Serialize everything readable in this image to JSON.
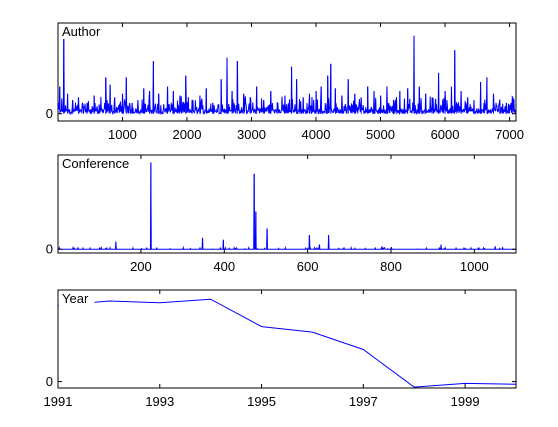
{
  "chart_data": [
    {
      "type": "line",
      "title": "Author",
      "color": "#0000ff",
      "xlim": [
        1,
        7100
      ],
      "ylim": [
        -0.08,
        1
      ],
      "xticks": [
        1000,
        2000,
        3000,
        4000,
        5000,
        6000,
        7000
      ],
      "yticks": [
        0
      ],
      "peaks": [
        {
          "x": 30,
          "y": 0.3
        },
        {
          "x": 90,
          "y": 0.92
        },
        {
          "x": 150,
          "y": 0.22
        },
        {
          "x": 230,
          "y": 0.15
        },
        {
          "x": 320,
          "y": 0.18
        },
        {
          "x": 450,
          "y": 0.12
        },
        {
          "x": 560,
          "y": 0.2
        },
        {
          "x": 640,
          "y": 0.1
        },
        {
          "x": 740,
          "y": 0.4
        },
        {
          "x": 810,
          "y": 0.32
        },
        {
          "x": 880,
          "y": 0.18
        },
        {
          "x": 1000,
          "y": 0.22
        },
        {
          "x": 1060,
          "y": 0.4
        },
        {
          "x": 1150,
          "y": 0.12
        },
        {
          "x": 1240,
          "y": 0.15
        },
        {
          "x": 1330,
          "y": 0.28
        },
        {
          "x": 1420,
          "y": 0.25
        },
        {
          "x": 1480,
          "y": 0.58
        },
        {
          "x": 1560,
          "y": 0.22
        },
        {
          "x": 1700,
          "y": 0.3
        },
        {
          "x": 1790,
          "y": 0.25
        },
        {
          "x": 1890,
          "y": 0.2
        },
        {
          "x": 1980,
          "y": 0.42
        },
        {
          "x": 2080,
          "y": 0.15
        },
        {
          "x": 2200,
          "y": 0.2
        },
        {
          "x": 2300,
          "y": 0.28
        },
        {
          "x": 2400,
          "y": 0.12
        },
        {
          "x": 2530,
          "y": 0.38
        },
        {
          "x": 2620,
          "y": 0.62
        },
        {
          "x": 2700,
          "y": 0.25
        },
        {
          "x": 2780,
          "y": 0.58
        },
        {
          "x": 2880,
          "y": 0.22
        },
        {
          "x": 2980,
          "y": 0.18
        },
        {
          "x": 3080,
          "y": 0.3
        },
        {
          "x": 3190,
          "y": 0.15
        },
        {
          "x": 3300,
          "y": 0.25
        },
        {
          "x": 3400,
          "y": 0.12
        },
        {
          "x": 3520,
          "y": 0.2
        },
        {
          "x": 3620,
          "y": 0.52
        },
        {
          "x": 3700,
          "y": 0.38
        },
        {
          "x": 3800,
          "y": 0.18
        },
        {
          "x": 3900,
          "y": 0.22
        },
        {
          "x": 4000,
          "y": 0.25
        },
        {
          "x": 4080,
          "y": 0.3
        },
        {
          "x": 4180,
          "y": 0.42
        },
        {
          "x": 4230,
          "y": 0.55
        },
        {
          "x": 4300,
          "y": 0.28
        },
        {
          "x": 4400,
          "y": 0.2
        },
        {
          "x": 4500,
          "y": 0.38
        },
        {
          "x": 4600,
          "y": 0.22
        },
        {
          "x": 4700,
          "y": 0.18
        },
        {
          "x": 4800,
          "y": 0.3
        },
        {
          "x": 4900,
          "y": 0.25
        },
        {
          "x": 5000,
          "y": 0.2
        },
        {
          "x": 5100,
          "y": 0.3
        },
        {
          "x": 5200,
          "y": 0.15
        },
        {
          "x": 5300,
          "y": 0.25
        },
        {
          "x": 5420,
          "y": 0.28
        },
        {
          "x": 5520,
          "y": 0.86
        },
        {
          "x": 5600,
          "y": 0.3
        },
        {
          "x": 5700,
          "y": 0.22
        },
        {
          "x": 5800,
          "y": 0.18
        },
        {
          "x": 5900,
          "y": 0.45
        },
        {
          "x": 6000,
          "y": 0.25
        },
        {
          "x": 6100,
          "y": 0.3
        },
        {
          "x": 6150,
          "y": 0.7
        },
        {
          "x": 6250,
          "y": 0.25
        },
        {
          "x": 6350,
          "y": 0.18
        },
        {
          "x": 6450,
          "y": 0.15
        },
        {
          "x": 6550,
          "y": 0.35
        },
        {
          "x": 6650,
          "y": 0.4
        },
        {
          "x": 6750,
          "y": 0.22
        },
        {
          "x": 6850,
          "y": 0.15
        },
        {
          "x": 6950,
          "y": 0.12
        },
        {
          "x": 7050,
          "y": 0.18
        }
      ]
    },
    {
      "type": "line",
      "title": "Conference",
      "color": "#0000ff",
      "xlim": [
        1,
        1100
      ],
      "ylim": [
        -0.04,
        1
      ],
      "xticks": [
        200,
        400,
        600,
        800,
        1000
      ],
      "yticks": [
        0
      ],
      "peaks": [
        {
          "x": 140,
          "y": 0.08
        },
        {
          "x": 224,
          "y": 0.92
        },
        {
          "x": 348,
          "y": 0.12
        },
        {
          "x": 398,
          "y": 0.1
        },
        {
          "x": 472,
          "y": 0.8
        },
        {
          "x": 476,
          "y": 0.4
        },
        {
          "x": 503,
          "y": 0.22
        },
        {
          "x": 604,
          "y": 0.15
        },
        {
          "x": 628,
          "y": 0.05
        },
        {
          "x": 650,
          "y": 0.15
        },
        {
          "x": 920,
          "y": 0.05
        },
        {
          "x": 1050,
          "y": 0.03
        }
      ]
    },
    {
      "type": "line",
      "title": "Year",
      "color": "#0000ff",
      "xlim": [
        1991,
        2000
      ],
      "ylim": [
        -0.07,
        1
      ],
      "xticks": [
        1991,
        1993,
        1995,
        1997,
        1999
      ],
      "yticks": [
        0
      ],
      "x": [
        1991,
        1992,
        1993,
        1994,
        1995,
        1996,
        1997,
        1998,
        1999,
        2000
      ],
      "y": [
        0.83,
        0.88,
        0.86,
        0.9,
        0.6,
        0.54,
        0.35,
        -0.06,
        -0.02,
        -0.03
      ]
    }
  ]
}
